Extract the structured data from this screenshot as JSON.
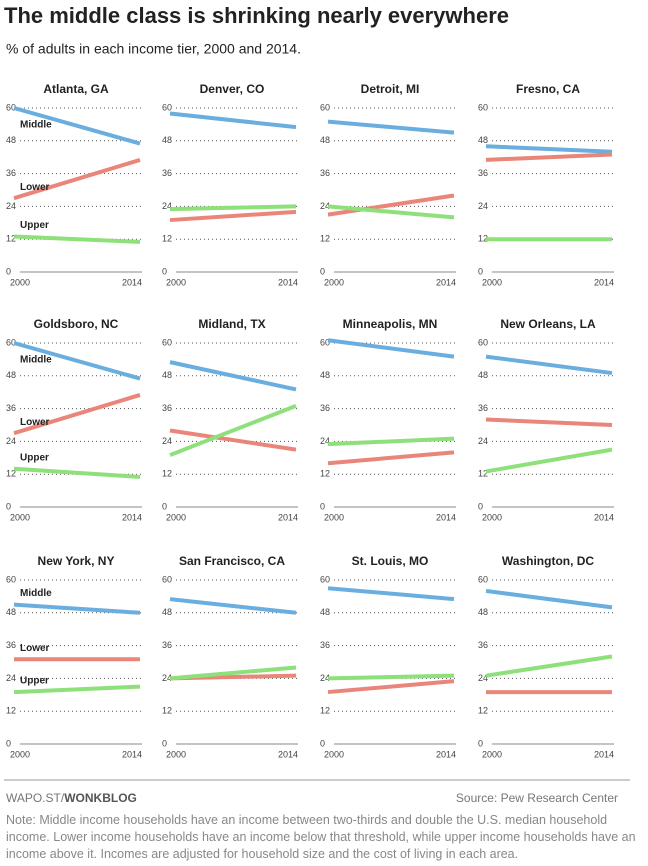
{
  "title": "The middle class is shrinking nearly everywhere",
  "subtitle": "% of adults in each income tier, 2000 and 2014.",
  "footer": {
    "brand_prefix": "WAPO.ST/",
    "brand": "WONKBLOG",
    "source": "Source: Pew Research Center",
    "note": "Note: Middle income households have an income between two-thirds and double the U.S. median household income. Lower income households have an income below that threshold, while upper income households have an income above it. Incomes are adjusted for household size and the cost of living in each area."
  },
  "chart_data": [
    {
      "type": "line",
      "title": "Atlanta, GA",
      "x": [
        2000,
        2014
      ],
      "xlim": [
        2000,
        2014
      ],
      "xticks": [
        2000,
        2014
      ],
      "ylim": [
        0,
        60
      ],
      "yticks": [
        0,
        12,
        24,
        36,
        48,
        60
      ],
      "grid": true,
      "series": [
        {
          "name": "Middle",
          "color": "#6aaee0",
          "values": [
            60,
            47
          ]
        },
        {
          "name": "Lower",
          "color": "#ea8679",
          "values": [
            27,
            41
          ]
        },
        {
          "name": "Upper",
          "color": "#8ee07a",
          "values": [
            13,
            11
          ]
        }
      ]
    },
    {
      "type": "line",
      "title": "Denver, CO",
      "x": [
        2000,
        2014
      ],
      "xlim": [
        2000,
        2014
      ],
      "xticks": [
        2000,
        2014
      ],
      "ylim": [
        0,
        60
      ],
      "yticks": [
        0,
        12,
        24,
        36,
        48,
        60
      ],
      "grid": true,
      "series": [
        {
          "color": "#6aaee0",
          "values": [
            58,
            53
          ]
        },
        {
          "color": "#ea8679",
          "values": [
            19,
            22
          ]
        },
        {
          "color": "#8ee07a",
          "values": [
            23,
            24
          ]
        }
      ]
    },
    {
      "type": "line",
      "title": "Detroit, MI",
      "x": [
        2000,
        2014
      ],
      "xlim": [
        2000,
        2014
      ],
      "xticks": [
        2000,
        2014
      ],
      "ylim": [
        0,
        60
      ],
      "yticks": [
        0,
        12,
        24,
        36,
        48,
        60
      ],
      "grid": true,
      "series": [
        {
          "color": "#6aaee0",
          "values": [
            55,
            51
          ]
        },
        {
          "color": "#ea8679",
          "values": [
            21,
            28
          ]
        },
        {
          "color": "#8ee07a",
          "values": [
            24,
            20
          ]
        }
      ]
    },
    {
      "type": "line",
      "title": "Fresno, CA",
      "x": [
        2000,
        2014
      ],
      "xlim": [
        2000,
        2014
      ],
      "xticks": [
        2000,
        2014
      ],
      "ylim": [
        0,
        60
      ],
      "yticks": [
        0,
        12,
        24,
        36,
        48,
        60
      ],
      "grid": true,
      "series": [
        {
          "color": "#6aaee0",
          "values": [
            46,
            44
          ]
        },
        {
          "color": "#ea8679",
          "values": [
            41,
            43
          ]
        },
        {
          "color": "#8ee07a",
          "values": [
            12,
            12
          ]
        }
      ]
    },
    {
      "type": "line",
      "title": "Goldsboro, NC",
      "x": [
        2000,
        2014
      ],
      "xlim": [
        2000,
        2014
      ],
      "xticks": [
        2000,
        2014
      ],
      "ylim": [
        0,
        60
      ],
      "yticks": [
        0,
        12,
        24,
        36,
        48,
        60
      ],
      "grid": true,
      "series": [
        {
          "name": "Middle",
          "color": "#6aaee0",
          "values": [
            60,
            47
          ]
        },
        {
          "name": "Lower",
          "color": "#ea8679",
          "values": [
            27,
            41
          ]
        },
        {
          "name": "Upper",
          "color": "#8ee07a",
          "values": [
            14,
            11
          ]
        }
      ]
    },
    {
      "type": "line",
      "title": "Midland, TX",
      "x": [
        2000,
        2014
      ],
      "xlim": [
        2000,
        2014
      ],
      "xticks": [
        2000,
        2014
      ],
      "ylim": [
        0,
        60
      ],
      "yticks": [
        0,
        12,
        24,
        36,
        48,
        60
      ],
      "grid": true,
      "series": [
        {
          "color": "#6aaee0",
          "values": [
            53,
            43
          ]
        },
        {
          "color": "#ea8679",
          "values": [
            28,
            21
          ]
        },
        {
          "color": "#8ee07a",
          "values": [
            19,
            37
          ]
        }
      ]
    },
    {
      "type": "line",
      "title": "Minneapolis, MN",
      "x": [
        2000,
        2014
      ],
      "xlim": [
        2000,
        2014
      ],
      "xticks": [
        2000,
        2014
      ],
      "ylim": [
        0,
        60
      ],
      "yticks": [
        0,
        12,
        24,
        36,
        48,
        60
      ],
      "grid": true,
      "series": [
        {
          "color": "#6aaee0",
          "values": [
            61,
            55
          ]
        },
        {
          "color": "#ea8679",
          "values": [
            16,
            20
          ]
        },
        {
          "color": "#8ee07a",
          "values": [
            23,
            25
          ]
        }
      ]
    },
    {
      "type": "line",
      "title": "New Orleans, LA",
      "x": [
        2000,
        2014
      ],
      "xlim": [
        2000,
        2014
      ],
      "xticks": [
        2000,
        2014
      ],
      "ylim": [
        0,
        60
      ],
      "yticks": [
        0,
        12,
        24,
        36,
        48,
        60
      ],
      "grid": true,
      "series": [
        {
          "color": "#6aaee0",
          "values": [
            55,
            49
          ]
        },
        {
          "color": "#ea8679",
          "values": [
            32,
            30
          ]
        },
        {
          "color": "#8ee07a",
          "values": [
            13,
            21
          ]
        }
      ]
    },
    {
      "type": "line",
      "title": "New York, NY",
      "x": [
        2000,
        2014
      ],
      "xlim": [
        2000,
        2014
      ],
      "xticks": [
        2000,
        2014
      ],
      "ylim": [
        0,
        60
      ],
      "yticks": [
        0,
        12,
        24,
        36,
        48,
        60
      ],
      "grid": true,
      "series": [
        {
          "name": "Middle",
          "color": "#6aaee0",
          "values": [
            51,
            48
          ]
        },
        {
          "name": "Lower",
          "color": "#ea8679",
          "values": [
            31,
            31
          ]
        },
        {
          "name": "Upper",
          "color": "#8ee07a",
          "values": [
            19,
            21
          ]
        }
      ]
    },
    {
      "type": "line",
      "title": "San Francisco, CA",
      "x": [
        2000,
        2014
      ],
      "xlim": [
        2000,
        2014
      ],
      "xticks": [
        2000,
        2014
      ],
      "ylim": [
        0,
        60
      ],
      "yticks": [
        0,
        12,
        24,
        36,
        48,
        60
      ],
      "grid": true,
      "series": [
        {
          "color": "#6aaee0",
          "values": [
            53,
            48
          ]
        },
        {
          "color": "#ea8679",
          "values": [
            24,
            25
          ]
        },
        {
          "color": "#8ee07a",
          "values": [
            24,
            28
          ]
        }
      ]
    },
    {
      "type": "line",
      "title": "St. Louis, MO",
      "x": [
        2000,
        2014
      ],
      "xlim": [
        2000,
        2014
      ],
      "xticks": [
        2000,
        2014
      ],
      "ylim": [
        0,
        60
      ],
      "yticks": [
        0,
        12,
        24,
        36,
        48,
        60
      ],
      "grid": true,
      "series": [
        {
          "color": "#6aaee0",
          "values": [
            57,
            53
          ]
        },
        {
          "color": "#ea8679",
          "values": [
            19,
            23
          ]
        },
        {
          "color": "#8ee07a",
          "values": [
            24,
            25
          ]
        }
      ]
    },
    {
      "type": "line",
      "title": "Washington, DC",
      "x": [
        2000,
        2014
      ],
      "xlim": [
        2000,
        2014
      ],
      "xticks": [
        2000,
        2014
      ],
      "ylim": [
        0,
        60
      ],
      "yticks": [
        0,
        12,
        24,
        36,
        48,
        60
      ],
      "grid": true,
      "series": [
        {
          "color": "#6aaee0",
          "values": [
            56,
            50
          ]
        },
        {
          "color": "#ea8679",
          "values": [
            19,
            19
          ]
        },
        {
          "color": "#8ee07a",
          "values": [
            25,
            32
          ]
        }
      ]
    }
  ]
}
